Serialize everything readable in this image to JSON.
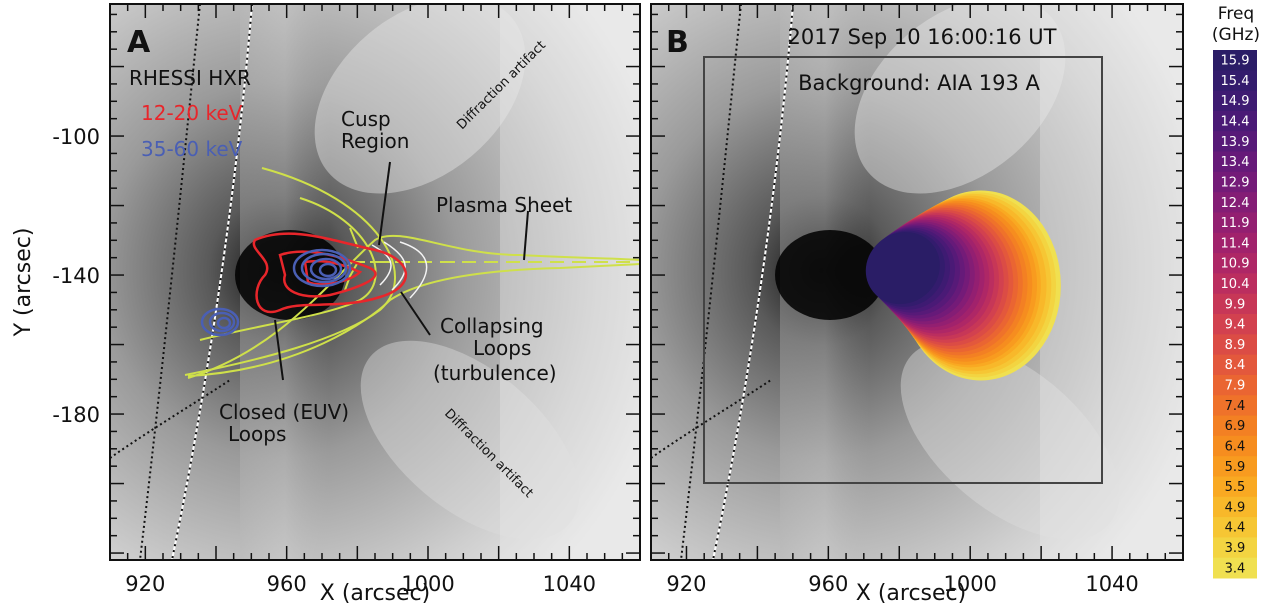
{
  "chart_data": [
    {
      "type": "heatmap",
      "panel_label": "A",
      "background": "EUV image (grayscale)",
      "xlabel": "X (arcsec)",
      "ylabel": "Y (arcsec)",
      "xlim": [
        910,
        1060
      ],
      "ylim": [
        -222,
        -62
      ],
      "xticks": [
        920,
        960,
        1000,
        1040
      ],
      "yticks": [
        -100,
        -140,
        -180
      ],
      "x_minor_step": 5,
      "y_minor_step": 5,
      "legend": {
        "title": "RHESSI HXR",
        "entries": [
          {
            "label": "12-20 keV",
            "color": "#e8262b"
          },
          {
            "label": "35-60 keV",
            "color": "#4a5fb4"
          }
        ]
      },
      "annotations": [
        {
          "text": "Cusp Region",
          "lines": [
            "Cusp",
            "Region"
          ],
          "x": 990,
          "y": -107
        },
        {
          "text": "Plasma Sheet",
          "x": 1028,
          "y": -128
        },
        {
          "text": "Collapsing Loops (turbulence)",
          "lines": [
            "Collapsing",
            "Loops",
            "(turbulence)"
          ],
          "x": 1011,
          "y": -158
        },
        {
          "text": "Closed (EUV) Loops",
          "lines": [
            "Closed (EUV)",
            "Loops"
          ],
          "x": 955,
          "y": -190
        },
        {
          "text": "Diffraction artifact",
          "x": 1030,
          "y": -88,
          "angle": -45
        },
        {
          "text": "Diffraction artifact",
          "x": 1020,
          "y": -200,
          "angle": 45
        }
      ],
      "contours": {
        "hxr_12_20_keV": {
          "center": [
            964,
            -140
          ],
          "color": "#e8262b"
        },
        "hxr_35_60_keV_main": {
          "center": [
            970,
            -141
          ],
          "color": "#4a5fb4"
        },
        "hxr_35_60_keV_footpoint": {
          "center": [
            941,
            -156
          ],
          "color": "#4a5fb4"
        }
      },
      "model_lines_color": "#cfe04a",
      "collapsing_loops_color": "#ffffff"
    },
    {
      "type": "heatmap",
      "panel_label": "B",
      "title": "2017 Sep 10 16:00:16 UT",
      "subtitle": "Background: AIA 193 A",
      "xlabel": "X (arcsec)",
      "xlim": [
        910,
        1060
      ],
      "ylim": [
        -222,
        -62
      ],
      "xticks": [
        920,
        960,
        1000,
        1040
      ],
      "microwave_source_centroid_trend": "low frequencies (yellow) larger and further right; high frequencies (purple) smaller and further left",
      "colorbar": {
        "title": "Freq (GHz)",
        "levels": [
          15.9,
          15.4,
          14.9,
          14.4,
          13.9,
          13.4,
          12.9,
          12.4,
          11.9,
          11.4,
          10.9,
          10.4,
          9.9,
          9.4,
          8.9,
          8.4,
          7.9,
          7.4,
          6.9,
          6.4,
          5.9,
          5.5,
          4.9,
          4.4,
          3.9,
          3.4
        ],
        "colors": [
          "#2a1d66",
          "#331c6d",
          "#3e1b72",
          "#4a1a76",
          "#571a78",
          "#661a79",
          "#741b78",
          "#841d75",
          "#931f71",
          "#a1226c",
          "#ae2766",
          "#bb2e5f",
          "#c73757",
          "#d2414f",
          "#db4c45",
          "#e3583c",
          "#ea6532",
          "#ef722a",
          "#f38023",
          "#f68d1f",
          "#f89b1f",
          "#f9a922",
          "#f8b82a",
          "#f6c634",
          "#f3d441",
          "#f0e050"
        ]
      }
    }
  ]
}
